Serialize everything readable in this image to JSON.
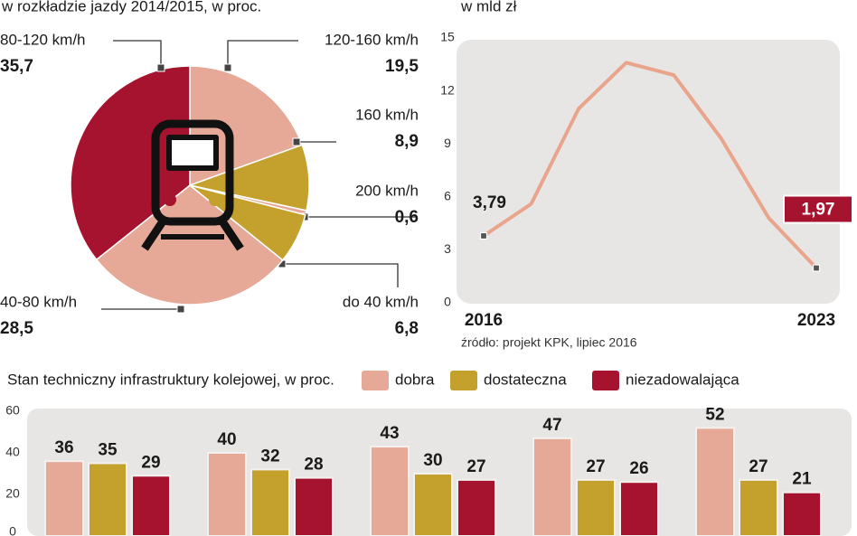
{
  "chart_data": [
    {
      "type": "pie",
      "subtitle": "w rozkładzie jazdy 2014/2015, w proc.",
      "categories": [
        "120-160 km/h",
        "160 km/h",
        "200 km/h",
        "do 40 km/h",
        "40-80 km/h",
        "80-120 km/h"
      ],
      "values": [
        19.5,
        8.9,
        0.6,
        6.8,
        28.5,
        35.7
      ],
      "value_labels": [
        "19,5",
        "8,9",
        "0,6",
        "6,8",
        "28,5",
        "35,7"
      ],
      "colors": [
        "#e6a998",
        "#c4a12c",
        "#e6a998",
        "#c4a12c",
        "#e6a998",
        "#a6132e"
      ]
    },
    {
      "type": "line",
      "subtitle": "w mld zł",
      "categories": [
        "2016",
        null,
        null,
        null,
        null,
        null,
        null,
        "2023"
      ],
      "values": [
        3.79,
        5.6,
        11,
        13.6,
        12.9,
        9.3,
        4.8,
        1.97
      ],
      "value_labels": [
        "3,79",
        null,
        null,
        null,
        null,
        null,
        null,
        "1,97"
      ],
      "color": "#e9a48c",
      "ylim": [
        0,
        15
      ],
      "yticks": [
        0,
        3,
        6,
        9,
        12,
        15
      ],
      "source": "źródło: projekt KPK, lipiec 2016"
    },
    {
      "type": "bar",
      "title": "Stan techniczny infrastruktury kolejowej, w proc.",
      "categories": [
        null,
        null,
        null,
        null,
        null
      ],
      "series": [
        {
          "name": "dobra",
          "color": "#e6a998",
          "values": [
            36,
            40,
            43,
            47,
            52
          ]
        },
        {
          "name": "dostateczna",
          "color": "#c4a12c",
          "values": [
            35,
            32,
            30,
            27,
            27
          ]
        },
        {
          "name": "niezadowalająca",
          "color": "#a6132e",
          "values": [
            29,
            28,
            27,
            26,
            21
          ]
        }
      ],
      "ylim": [
        0,
        60
      ],
      "yticks": [
        0,
        20,
        40,
        60
      ]
    }
  ]
}
